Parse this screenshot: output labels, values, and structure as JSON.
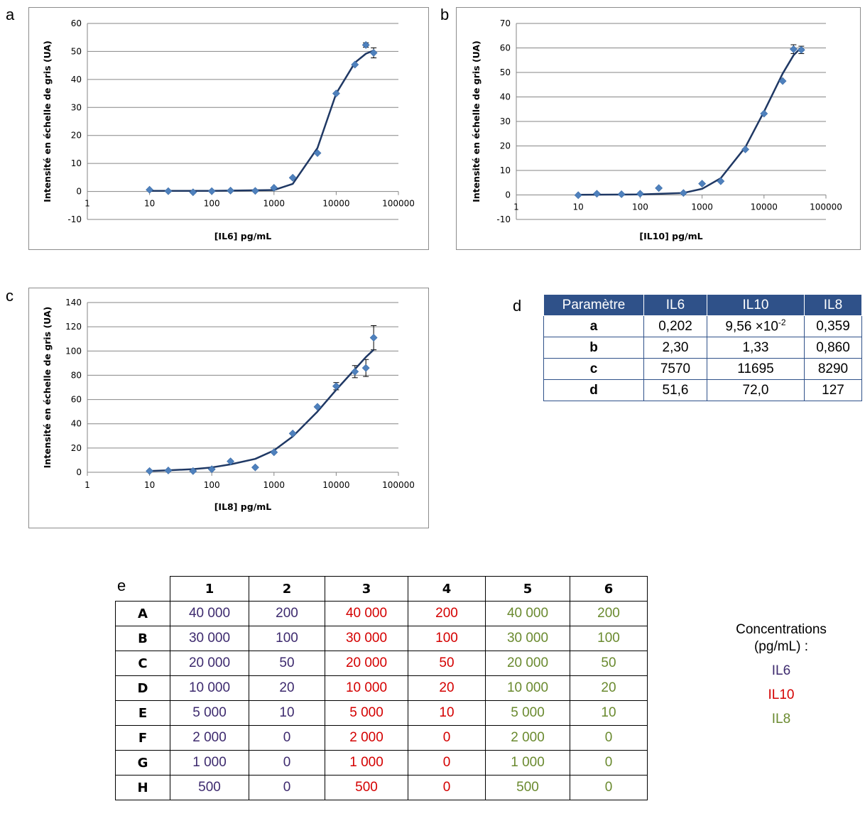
{
  "panels": {
    "a": "a",
    "b": "b",
    "c": "c",
    "d": "d",
    "e": "e"
  },
  "chart_data": [
    {
      "id": "a",
      "type": "scatter",
      "xscale": "log",
      "xlim": [
        1,
        100000
      ],
      "ylim": [
        -10,
        60
      ],
      "yticks": [
        -10,
        0,
        10,
        20,
        30,
        40,
        50,
        60
      ],
      "xticks": [
        1,
        10,
        100,
        1000,
        10000,
        100000
      ],
      "xtick_labels": [
        "1",
        "10",
        "100",
        "1000",
        "10000",
        "100000"
      ],
      "xlabel": "[IL6] pg/mL",
      "ylabel": "Intensité en échelle de gris (UA)",
      "grid": true,
      "marker_color": "#4f81bd",
      "line_color": "#1f3864",
      "points": [
        {
          "x": 10,
          "y": 0.6
        },
        {
          "x": 20,
          "y": 0.1
        },
        {
          "x": 50,
          "y": -0.3
        },
        {
          "x": 100,
          "y": 0.1
        },
        {
          "x": 200,
          "y": 0.3
        },
        {
          "x": 500,
          "y": 0.2
        },
        {
          "x": 1000,
          "y": 1.3
        },
        {
          "x": 2000,
          "y": 4.9
        },
        {
          "x": 5000,
          "y": 13.7
        },
        {
          "x": 10000,
          "y": 35.0
        },
        {
          "x": 20000,
          "y": 45.3
        },
        {
          "x": 30000,
          "y": 52.3,
          "err": 0.8
        },
        {
          "x": 40000,
          "y": 49.5,
          "err": 1.8
        }
      ],
      "fit": [
        {
          "x": 10,
          "y": 0.2
        },
        {
          "x": 100,
          "y": 0.2
        },
        {
          "x": 1000,
          "y": 0.5
        },
        {
          "x": 2000,
          "y": 2.7
        },
        {
          "x": 5000,
          "y": 15.5
        },
        {
          "x": 10000,
          "y": 35.0
        },
        {
          "x": 20000,
          "y": 46.0
        },
        {
          "x": 30000,
          "y": 49.2
        },
        {
          "x": 40000,
          "y": 50.3
        }
      ]
    },
    {
      "id": "b",
      "type": "scatter",
      "xscale": "log",
      "xlim": [
        1,
        100000
      ],
      "ylim": [
        -10,
        70
      ],
      "yticks": [
        -10,
        0,
        10,
        20,
        30,
        40,
        50,
        60,
        70
      ],
      "xticks": [
        1,
        10,
        100,
        1000,
        10000,
        100000
      ],
      "xtick_labels": [
        "1",
        "10",
        "100",
        "1000",
        "10000",
        "100000"
      ],
      "xlabel": "[IL10] pg/mL",
      "ylabel": "Intensité en échelle de gris (UA)",
      "grid": true,
      "marker_color": "#4f81bd",
      "line_color": "#1f3864",
      "points": [
        {
          "x": 10,
          "y": -0.1
        },
        {
          "x": 20,
          "y": 0.5
        },
        {
          "x": 50,
          "y": 0.3
        },
        {
          "x": 100,
          "y": 0.5
        },
        {
          "x": 200,
          "y": 2.8
        },
        {
          "x": 500,
          "y": 0.8
        },
        {
          "x": 1000,
          "y": 4.6
        },
        {
          "x": 2000,
          "y": 5.6
        },
        {
          "x": 5000,
          "y": 18.6
        },
        {
          "x": 10000,
          "y": 33.2
        },
        {
          "x": 20000,
          "y": 46.5
        },
        {
          "x": 30000,
          "y": 59.5,
          "err": 1.8
        },
        {
          "x": 40000,
          "y": 59.2,
          "err": 1.5
        }
      ],
      "fit": [
        {
          "x": 10,
          "y": 0.1
        },
        {
          "x": 100,
          "y": 0.2
        },
        {
          "x": 500,
          "y": 0.8
        },
        {
          "x": 1000,
          "y": 2.5
        },
        {
          "x": 2000,
          "y": 6.8
        },
        {
          "x": 5000,
          "y": 19.5
        },
        {
          "x": 10000,
          "y": 34.0
        },
        {
          "x": 20000,
          "y": 49.5
        },
        {
          "x": 30000,
          "y": 57.0
        },
        {
          "x": 40000,
          "y": 60.2
        }
      ]
    },
    {
      "id": "c",
      "type": "scatter",
      "xscale": "log",
      "xlim": [
        1,
        100000
      ],
      "ylim": [
        0,
        140
      ],
      "yticks": [
        0,
        20,
        40,
        60,
        80,
        100,
        120,
        140
      ],
      "xticks": [
        1,
        10,
        100,
        1000,
        10000,
        100000
      ],
      "xtick_labels": [
        "1",
        "10",
        "100",
        "1000",
        "10000",
        "100000"
      ],
      "xlabel": "[IL8] pg/mL",
      "ylabel": "Intensité en échelle de gris (UA)",
      "grid": true,
      "marker_color": "#4f81bd",
      "line_color": "#1f3864",
      "points": [
        {
          "x": 10,
          "y": 1
        },
        {
          "x": 20,
          "y": 1.5
        },
        {
          "x": 50,
          "y": 1
        },
        {
          "x": 100,
          "y": 2.5
        },
        {
          "x": 200,
          "y": 9
        },
        {
          "x": 500,
          "y": 4
        },
        {
          "x": 1000,
          "y": 16.5
        },
        {
          "x": 2000,
          "y": 32
        },
        {
          "x": 5000,
          "y": 54
        },
        {
          "x": 10000,
          "y": 71,
          "err": 3
        },
        {
          "x": 20000,
          "y": 83,
          "err": 5
        },
        {
          "x": 30000,
          "y": 86,
          "err": 7
        },
        {
          "x": 40000,
          "y": 111,
          "err": 10
        }
      ],
      "fit": [
        {
          "x": 10,
          "y": 1.0
        },
        {
          "x": 20,
          "y": 1.6
        },
        {
          "x": 50,
          "y": 2.6
        },
        {
          "x": 100,
          "y": 4.0
        },
        {
          "x": 200,
          "y": 6.5
        },
        {
          "x": 500,
          "y": 11.0
        },
        {
          "x": 1000,
          "y": 18.0
        },
        {
          "x": 2000,
          "y": 29.5
        },
        {
          "x": 5000,
          "y": 50.0
        },
        {
          "x": 10000,
          "y": 68.0
        },
        {
          "x": 20000,
          "y": 85.0
        },
        {
          "x": 30000,
          "y": 95.0
        },
        {
          "x": 40000,
          "y": 101.0
        }
      ]
    }
  ],
  "table_d": {
    "headers": [
      "Paramètre",
      "IL6",
      "IL10",
      "IL8"
    ],
    "rows": [
      {
        "label": "a",
        "il6": "0,202",
        "il10_base": "9,56 ×10",
        "il10_exp": "-2",
        "il8": "0,359"
      },
      {
        "label": "b",
        "il6": "2,30",
        "il10": "1,33",
        "il8": "0,860"
      },
      {
        "label": "c",
        "il6": "7570",
        "il10": "11695",
        "il8": "8290"
      },
      {
        "label": "d",
        "il6": "51,6",
        "il10": "72,0",
        "il8": "127"
      }
    ]
  },
  "table_e": {
    "columns": [
      "1",
      "2",
      "3",
      "4",
      "5",
      "6"
    ],
    "rows": [
      {
        "label": "A",
        "cells": [
          "40 000",
          "200",
          "40 000",
          "200",
          "40 000",
          "200"
        ]
      },
      {
        "label": "B",
        "cells": [
          "30 000",
          "100",
          "30 000",
          "100",
          "30 000",
          "100"
        ]
      },
      {
        "label": "C",
        "cells": [
          "20 000",
          "50",
          "20 000",
          "50",
          "20 000",
          "50"
        ]
      },
      {
        "label": "D",
        "cells": [
          "10 000",
          "20",
          "10 000",
          "20",
          "10 000",
          "20"
        ]
      },
      {
        "label": "E",
        "cells": [
          "5 000",
          "10",
          "5 000",
          "10",
          "5 000",
          "10"
        ]
      },
      {
        "label": "F",
        "cells": [
          "2 000",
          "0",
          "2 000",
          "0",
          "2 000",
          "0"
        ]
      },
      {
        "label": "G",
        "cells": [
          "1 000",
          "0",
          "1 000",
          "0",
          "1 000",
          "0"
        ]
      },
      {
        "label": "H",
        "cells": [
          "500",
          "0",
          "500",
          "0",
          "500",
          "0"
        ]
      }
    ],
    "column_colors": [
      "#3d2a6e",
      "#3d2a6e",
      "#d40000",
      "#d40000",
      "#6a8a2f",
      "#6a8a2f"
    ]
  },
  "legend_e": {
    "title_line1": "Concentrations",
    "title_line2": "(pg/mL) :",
    "items": [
      {
        "label": "IL6",
        "color": "#3d2a6e"
      },
      {
        "label": "IL10",
        "color": "#d40000"
      },
      {
        "label": "IL8",
        "color": "#6a8a2f"
      }
    ]
  }
}
